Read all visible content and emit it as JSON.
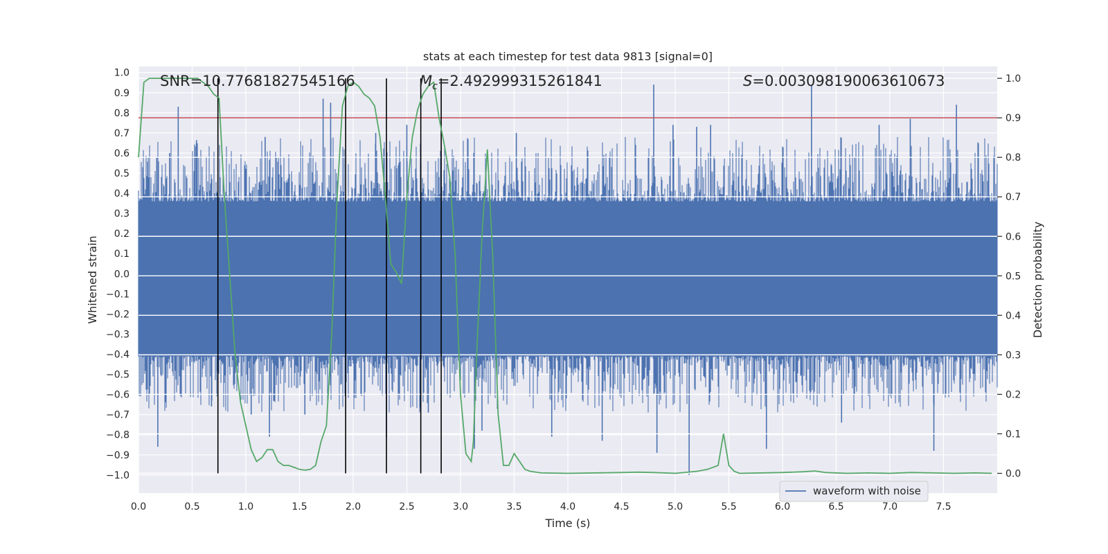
{
  "chart_data": {
    "type": "line",
    "title": "stats at each timestep for test data 9813 [signal=0]",
    "xlabel": "Time (s)",
    "ylabel_left": "Whitened strain",
    "ylabel_right": "Detection probability",
    "xlim": [
      0.0,
      8.0
    ],
    "ylim_left": [
      -1.09,
      1.03
    ],
    "ylim_right": [
      -0.05,
      1.03
    ],
    "x_ticks": [
      "0.0",
      "0.5",
      "1.0",
      "1.5",
      "2.0",
      "2.5",
      "3.0",
      "3.5",
      "4.0",
      "4.5",
      "5.0",
      "5.5",
      "6.0",
      "6.5",
      "7.0",
      "7.5"
    ],
    "x_tick_values": [
      0.0,
      0.5,
      1.0,
      1.5,
      2.0,
      2.5,
      3.0,
      3.5,
      4.0,
      4.5,
      5.0,
      5.5,
      6.0,
      6.5,
      7.0,
      7.5
    ],
    "y_left_ticks": [
      "1.0",
      "0.9",
      "0.8",
      "0.7",
      "0.6",
      "0.5",
      "0.4",
      "0.3",
      "0.2",
      "0.1",
      "0.0",
      "-0.1",
      "-0.2",
      "-0.3",
      "-0.4",
      "-0.5",
      "-0.6",
      "-0.7",
      "-0.8",
      "-0.9",
      "-1.0"
    ],
    "y_left_tick_values": [
      1.0,
      0.9,
      0.8,
      0.7,
      0.6,
      0.5,
      0.4,
      0.3,
      0.2,
      0.1,
      0.0,
      -0.1,
      -0.2,
      -0.3,
      -0.4,
      -0.5,
      -0.6,
      -0.7,
      -0.8,
      -0.9,
      -1.0
    ],
    "y_right_ticks": [
      "1.0",
      "0.9",
      "0.8",
      "0.7",
      "0.6",
      "0.5",
      "0.4",
      "0.3",
      "0.2",
      "0.1",
      "0.0"
    ],
    "y_right_tick_values": [
      1.0,
      0.9,
      0.8,
      0.7,
      0.6,
      0.5,
      0.4,
      0.3,
      0.2,
      0.1,
      0.0
    ],
    "annotations": {
      "snr": "SNR=10.77681827545166",
      "mc_symbol": "M",
      "mc_sub": "c",
      "mc_value": "=2.492999315261841",
      "s_symbol": "S",
      "s_value": "=0.003098190063610673"
    },
    "legend": {
      "label": "waveform with noise",
      "location": "lower-right"
    },
    "threshold": {
      "value": 0.9,
      "axis": "right",
      "color": "#c44e52"
    },
    "vertical_markers": [
      0.74,
      1.93,
      2.31,
      2.63,
      2.82
    ],
    "waveform": {
      "name": "waveform with noise",
      "color": "#4c72b0",
      "core_band": [
        -0.41,
        0.36
      ],
      "positive_spikes": [
        [
          0.37,
          0.83
        ],
        [
          0.17,
          0.58
        ],
        [
          0.29,
          0.6
        ],
        [
          1.72,
          0.87
        ],
        [
          1.79,
          0.85
        ],
        [
          2.5,
          0.74
        ],
        [
          3.52,
          0.7
        ],
        [
          4.8,
          0.94
        ],
        [
          4.98,
          0.74
        ],
        [
          5.2,
          0.73
        ],
        [
          5.33,
          0.74
        ],
        [
          6.27,
          0.94
        ],
        [
          7.19,
          0.77
        ],
        [
          7.62,
          0.84
        ],
        [
          6.9,
          0.74
        ],
        [
          1.18,
          0.68
        ],
        [
          0.54,
          0.66
        ],
        [
          2.21,
          0.7
        ]
      ],
      "negative_spikes": [
        [
          0.18,
          -0.86
        ],
        [
          1.05,
          -0.7
        ],
        [
          1.22,
          -0.81
        ],
        [
          2.31,
          -0.81
        ],
        [
          2.7,
          -0.69
        ],
        [
          3.13,
          -0.87
        ],
        [
          3.2,
          -0.78
        ],
        [
          3.85,
          -0.81
        ],
        [
          4.32,
          -0.83
        ],
        [
          4.83,
          -0.89
        ],
        [
          5.13,
          -1.0
        ],
        [
          5.85,
          -0.87
        ],
        [
          6.55,
          -0.74
        ],
        [
          7.41,
          -0.88
        ],
        [
          0.68,
          -0.66
        ],
        [
          1.55,
          -0.7
        ]
      ]
    },
    "series": [
      {
        "name": "Detection probability",
        "axis": "right",
        "color": "#55a868",
        "x": [
          0.0,
          0.05,
          0.1,
          0.2,
          0.3,
          0.4,
          0.5,
          0.55,
          0.6,
          0.65,
          0.7,
          0.75,
          0.8,
          0.85,
          0.9,
          0.95,
          1.0,
          1.05,
          1.1,
          1.15,
          1.2,
          1.25,
          1.3,
          1.35,
          1.4,
          1.45,
          1.5,
          1.55,
          1.6,
          1.65,
          1.7,
          1.75,
          1.8,
          1.85,
          1.9,
          1.95,
          2.0,
          2.05,
          2.1,
          2.15,
          2.2,
          2.25,
          2.3,
          2.35,
          2.4,
          2.45,
          2.5,
          2.55,
          2.6,
          2.65,
          2.7,
          2.75,
          2.8,
          2.85,
          2.9,
          2.95,
          3.0,
          3.05,
          3.1,
          3.12,
          3.15,
          3.2,
          3.25,
          3.3,
          3.35,
          3.4,
          3.45,
          3.5,
          3.55,
          3.6,
          3.65,
          3.75,
          4.0,
          4.5,
          4.65,
          4.8,
          5.0,
          5.2,
          5.3,
          5.4,
          5.45,
          5.5,
          5.55,
          5.6,
          6.0,
          6.2,
          6.3,
          6.4,
          6.6,
          6.8,
          7.0,
          7.2,
          7.4,
          7.6,
          7.8,
          7.95
        ],
        "y": [
          0.8,
          0.99,
          1.0,
          1.0,
          1.0,
          1.0,
          1.0,
          1.0,
          0.99,
          0.98,
          0.96,
          0.95,
          0.7,
          0.5,
          0.3,
          0.18,
          0.12,
          0.06,
          0.03,
          0.04,
          0.06,
          0.06,
          0.03,
          0.02,
          0.02,
          0.015,
          0.01,
          0.008,
          0.01,
          0.02,
          0.08,
          0.12,
          0.35,
          0.7,
          0.93,
          0.98,
          0.99,
          0.98,
          0.96,
          0.95,
          0.93,
          0.85,
          0.7,
          0.53,
          0.51,
          0.48,
          0.7,
          0.85,
          0.92,
          0.96,
          0.98,
          0.99,
          0.9,
          0.83,
          0.75,
          0.55,
          0.2,
          0.05,
          0.03,
          0.08,
          0.3,
          0.6,
          0.82,
          0.55,
          0.15,
          0.02,
          0.02,
          0.05,
          0.03,
          0.01,
          0.005,
          0.001,
          0.0,
          0.002,
          0.003,
          0.002,
          0.0,
          0.005,
          0.01,
          0.02,
          0.1,
          0.02,
          0.005,
          0.0,
          0.002,
          0.004,
          0.006,
          0.002,
          0.0,
          0.001,
          0.0,
          0.002,
          0.001,
          0.0,
          0.001,
          0.0
        ]
      }
    ]
  }
}
